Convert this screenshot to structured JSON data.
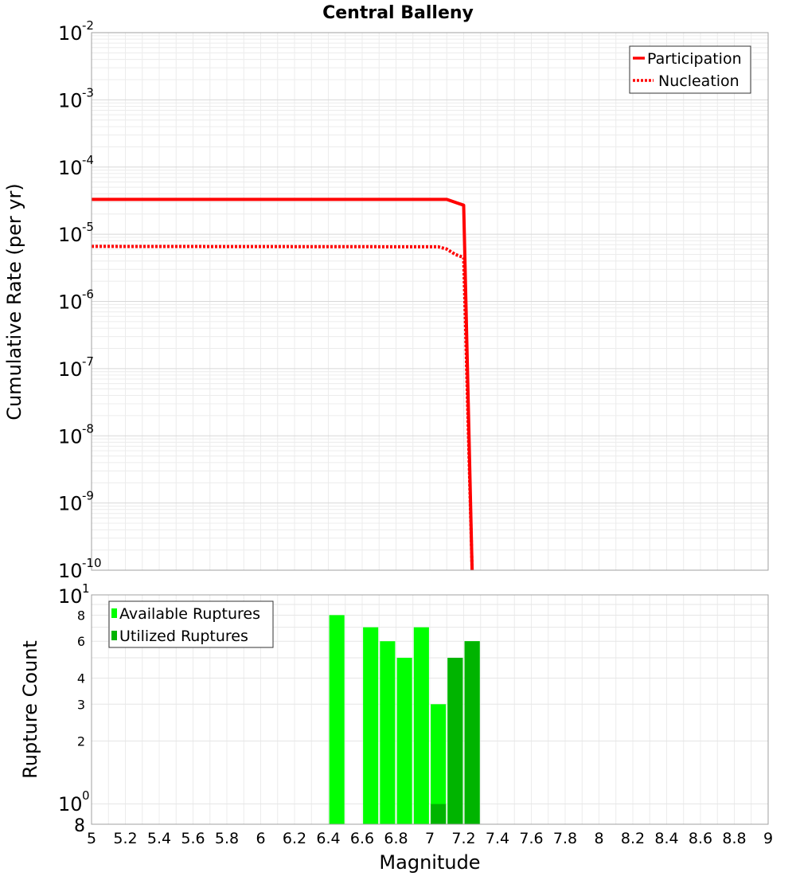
{
  "chart_data": [
    {
      "type": "line",
      "title": "Central Balleny",
      "xlabel": "Magnitude",
      "ylabel": "Cumulative Rate (per yr)",
      "yscale": "log",
      "xlim": [
        5,
        9
      ],
      "ylim": [
        1e-10,
        0.01
      ],
      "y_tick_exponents": [
        "-2",
        "-3",
        "-4",
        "-5",
        "-6",
        "-7",
        "-8",
        "-9",
        "-10"
      ],
      "y_tick_base": "10",
      "series": [
        {
          "name": "Participation",
          "color": "#ff0000",
          "style": "solid",
          "points": [
            [
              5.0,
              3.3e-05
            ],
            [
              7.1,
              3.3e-05
            ],
            [
              7.2,
              2.7e-05
            ],
            [
              7.25,
              1e-10
            ]
          ]
        },
        {
          "name": "Nucleation",
          "color": "#ff0000",
          "style": "dotted",
          "points": [
            [
              5.0,
              6.6e-06
            ],
            [
              7.05,
              6.5e-06
            ],
            [
              7.1,
              6e-06
            ],
            [
              7.15,
              5e-06
            ],
            [
              7.2,
              4.5e-06
            ],
            [
              7.25,
              1e-10
            ]
          ]
        }
      ],
      "legend": [
        "Participation",
        "Nucleation"
      ],
      "legend_position": "top-right",
      "grid": true
    },
    {
      "type": "bar",
      "xlabel": "Magnitude",
      "ylabel": "Rupture Count",
      "yscale": "log",
      "xlim": [
        5,
        9
      ],
      "ylim": [
        0.8,
        10
      ],
      "x_ticks": [
        "5",
        "5.2",
        "5.4",
        "5.6",
        "5.8",
        "6",
        "6.2",
        "6.4",
        "6.6",
        "6.8",
        "7",
        "7.2",
        "7.4",
        "7.6",
        "7.8",
        "8",
        "8.2",
        "8.4",
        "8.6",
        "8.8",
        "9"
      ],
      "y_minor_ticks": [
        "8",
        "6",
        "4",
        "3",
        "2"
      ],
      "y_extra_ticks": {
        "top_base": "10",
        "top_exp": "1",
        "mid_base": "10",
        "mid_exp": "0",
        "bottom": "8"
      },
      "bar_width": 0.09,
      "series": [
        {
          "name": "Available Ruptures",
          "color": "#00ff00",
          "points": [
            [
              6.45,
              8
            ],
            [
              6.65,
              7
            ],
            [
              6.75,
              6
            ],
            [
              6.85,
              5
            ],
            [
              6.95,
              7
            ],
            [
              7.05,
              3
            ],
            [
              7.15,
              5
            ],
            [
              7.25,
              6
            ]
          ]
        },
        {
          "name": "Utilized Ruptures",
          "color": "#00b400",
          "points": [
            [
              7.05,
              1
            ],
            [
              7.15,
              5
            ],
            [
              7.25,
              6
            ]
          ]
        }
      ],
      "legend": [
        "Available Ruptures",
        "Utilized Ruptures"
      ],
      "legend_position": "top-left",
      "grid": true
    }
  ]
}
